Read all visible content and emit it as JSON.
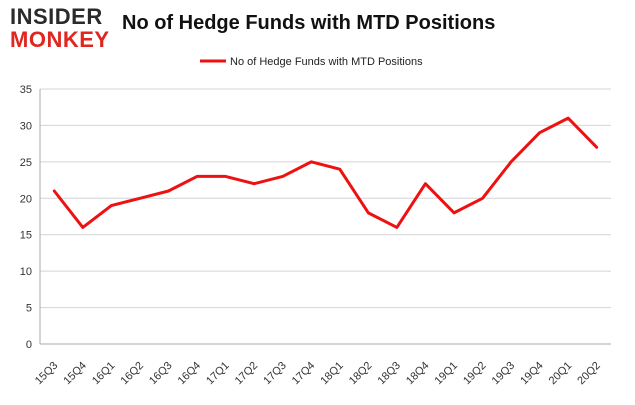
{
  "logo": {
    "line1": "INSIDER",
    "line2": "MONKEY"
  },
  "chart_data": {
    "type": "line",
    "title": "No of Hedge Funds with MTD Positions",
    "legend": {
      "position": "top-center"
    },
    "categories": [
      "15Q3",
      "15Q4",
      "16Q1",
      "16Q2",
      "16Q3",
      "16Q4",
      "17Q1",
      "17Q2",
      "17Q3",
      "17Q4",
      "18Q1",
      "18Q2",
      "18Q3",
      "18Q4",
      "19Q1",
      "19Q2",
      "19Q3",
      "19Q4",
      "20Q1",
      "20Q2"
    ],
    "series": [
      {
        "name": "No of Hedge Funds with MTD Positions",
        "color": "#ee1111",
        "values": [
          21,
          16,
          19,
          20,
          21,
          23,
          23,
          22,
          23,
          25,
          24,
          18,
          16,
          22,
          18,
          20,
          25,
          29,
          31,
          27
        ]
      }
    ],
    "ylim": [
      0,
      35
    ],
    "yticks": [
      0,
      5,
      10,
      15,
      20,
      25,
      30,
      35
    ],
    "grid": true
  }
}
